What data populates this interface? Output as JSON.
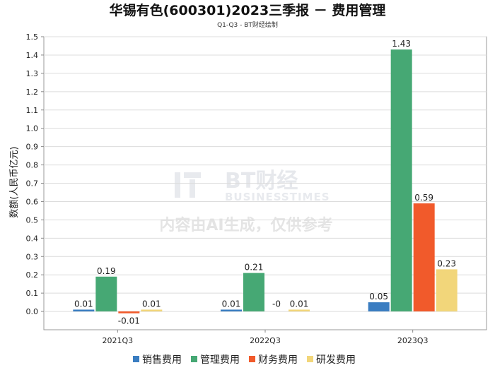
{
  "chart_data": {
    "type": "bar",
    "title": "华锡有色(600301)2023三季报 － 费用管理",
    "subtitle": "Q1-Q3 - BT财经绘制",
    "ylabel": "数额(人民币亿元)",
    "xlabel": "",
    "categories": [
      "2021Q3",
      "2022Q3",
      "2023Q3"
    ],
    "series": [
      {
        "name": "销售费用",
        "color": "#3a7dc1",
        "values": [
          0.01,
          0.01,
          0.05
        ],
        "labels": [
          "0.01",
          "0.01",
          "0.05"
        ]
      },
      {
        "name": "管理费用",
        "color": "#46a874",
        "values": [
          0.19,
          0.21,
          1.43
        ],
        "labels": [
          "0.19",
          "0.21",
          "1.43"
        ]
      },
      {
        "name": "财务费用",
        "color": "#f15a2b",
        "values": [
          -0.01,
          0,
          0.59
        ],
        "labels": [
          "-0.01",
          "-0",
          "0.59"
        ]
      },
      {
        "name": "研发费用",
        "color": "#f2d67a",
        "values": [
          0.01,
          0.01,
          0.23
        ],
        "labels": [
          "0.01",
          "0.01",
          "0.23"
        ]
      }
    ],
    "ylim": [
      -0.1,
      1.5
    ],
    "yticks": [
      "0.0",
      "0.1",
      "0.2",
      "0.3",
      "0.4",
      "0.5",
      "0.6",
      "0.7",
      "0.8",
      "0.9",
      "1.0",
      "1.1",
      "1.2",
      "1.3",
      "1.4",
      "1.5"
    ],
    "legend_position": "bottom",
    "grid": true
  },
  "watermark": {
    "brand": "BT财经",
    "brand_en": "BUSINESSTIMES",
    "notice": "内容由AI生成，仅供参考"
  }
}
